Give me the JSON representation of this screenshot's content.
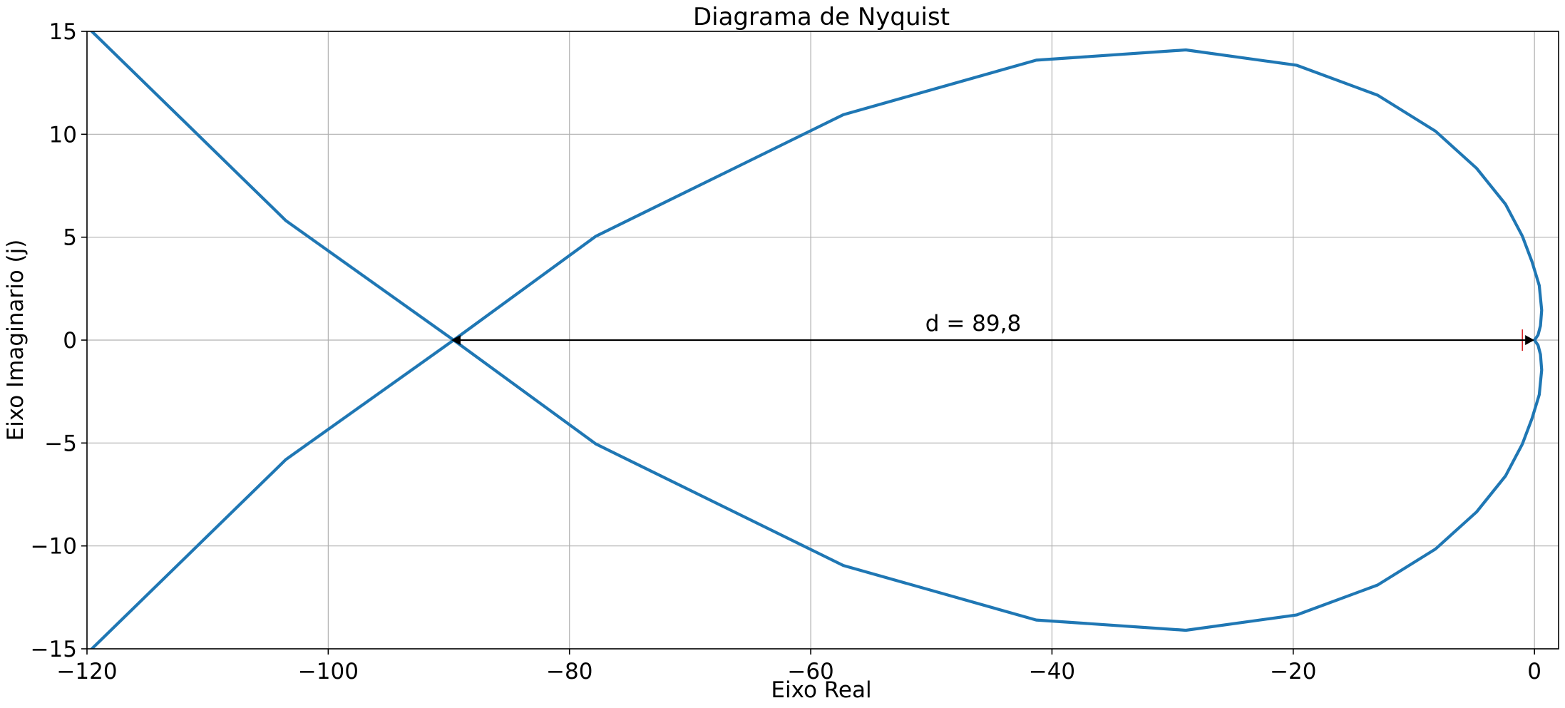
{
  "chart_data": {
    "type": "line",
    "title": "Diagrama de Nyquist",
    "xlabel": "Eixo Real",
    "ylabel": "Eixo Imaginario (j)",
    "xlim": [
      -120,
      2
    ],
    "ylim": [
      -15,
      15
    ],
    "grid": true,
    "x_ticks": [
      -120,
      -100,
      -80,
      -60,
      -40,
      -20,
      0
    ],
    "x_tick_labels": [
      "−120",
      "−100",
      "−80",
      "−60",
      "−40",
      "−20",
      "0"
    ],
    "y_ticks": [
      -15,
      -10,
      -5,
      0,
      5,
      10,
      15
    ],
    "y_tick_labels": [
      "−15",
      "−10",
      "−5",
      "0",
      "5",
      "10",
      "15"
    ],
    "series": [
      {
        "color": "#1f77b4",
        "x": [
          -119.6,
          -103.5,
          -89.6,
          -77.8,
          -57.3,
          -41.3,
          -28.9,
          -19.7,
          -13.0,
          -8.2,
          -4.8,
          -2.4,
          -1.0,
          -0.2,
          0.4,
          0.6,
          0.5,
          0.3,
          0.0,
          0.3,
          0.5,
          0.6,
          0.4,
          -0.2,
          -1.0,
          -2.4,
          -4.8,
          -8.2,
          -13.0,
          -19.7,
          -28.9,
          -41.3,
          -57.3,
          -77.8,
          -89.6,
          -103.5,
          -119.6
        ],
        "y": [
          15.0,
          5.8,
          0.0,
          -5.05,
          -10.95,
          -13.6,
          -14.1,
          -13.35,
          -11.9,
          -10.15,
          -8.35,
          -6.6,
          -5.05,
          -3.8,
          -2.65,
          -1.45,
          -0.7,
          -0.25,
          0.0,
          0.25,
          0.7,
          1.45,
          2.65,
          3.8,
          5.05,
          6.6,
          8.35,
          10.15,
          11.9,
          13.35,
          14.1,
          13.6,
          10.95,
          5.05,
          0.0,
          -5.8,
          -15.0
        ]
      }
    ],
    "annotation": {
      "text": "d = 89,8",
      "arrow_from": [
        -89.8,
        0
      ],
      "arrow_to": [
        0.0,
        0
      ],
      "text_pos": [
        -50.5,
        0.45
      ]
    },
    "marker": {
      "shape": "plus",
      "x": -1,
      "y": 0,
      "color": "#d62728"
    }
  }
}
